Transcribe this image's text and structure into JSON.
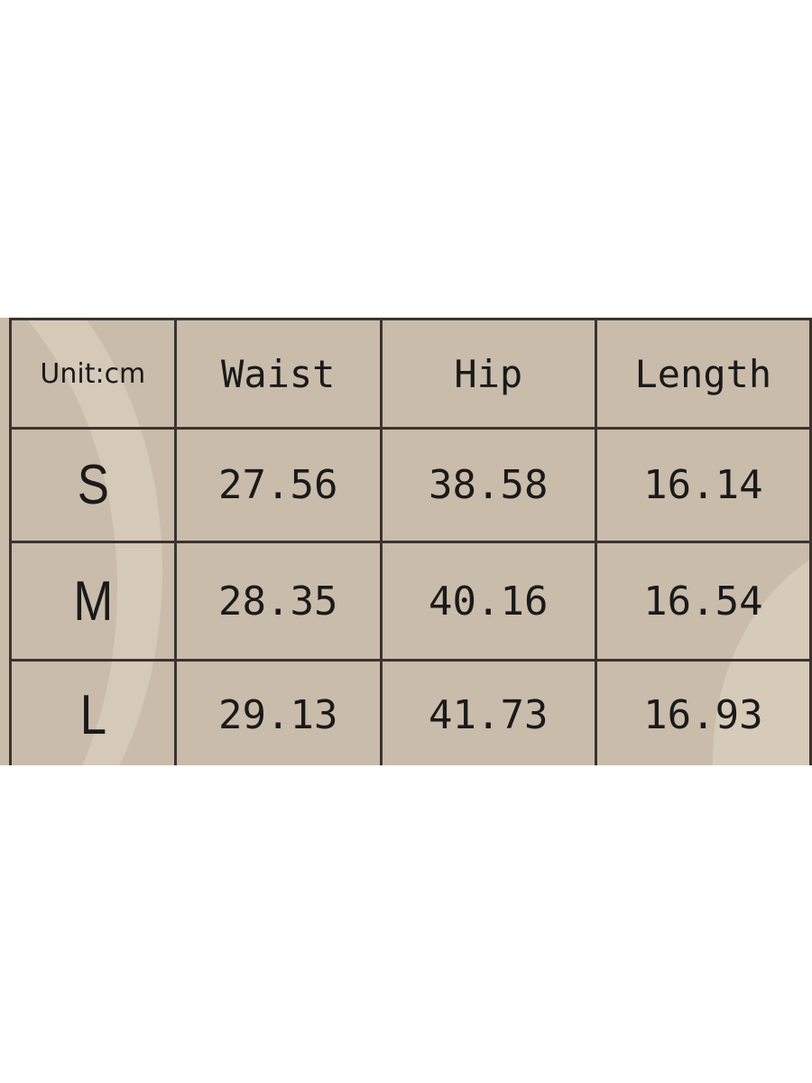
{
  "size_chart": {
    "unit_label": "Unit:cm",
    "columns": [
      "Waist",
      "Hip",
      "Length"
    ],
    "rows": [
      {
        "size": "S",
        "values": [
          "27.56",
          "38.58",
          "16.14"
        ]
      },
      {
        "size": "M",
        "values": [
          "28.35",
          "40.16",
          "16.54"
        ]
      },
      {
        "size": "L",
        "values": [
          "29.13",
          "41.73",
          "16.93"
        ]
      }
    ],
    "colors": {
      "background": "#c9bcaa",
      "grid": "#3a3430",
      "text": "#1a1a1a"
    }
  }
}
